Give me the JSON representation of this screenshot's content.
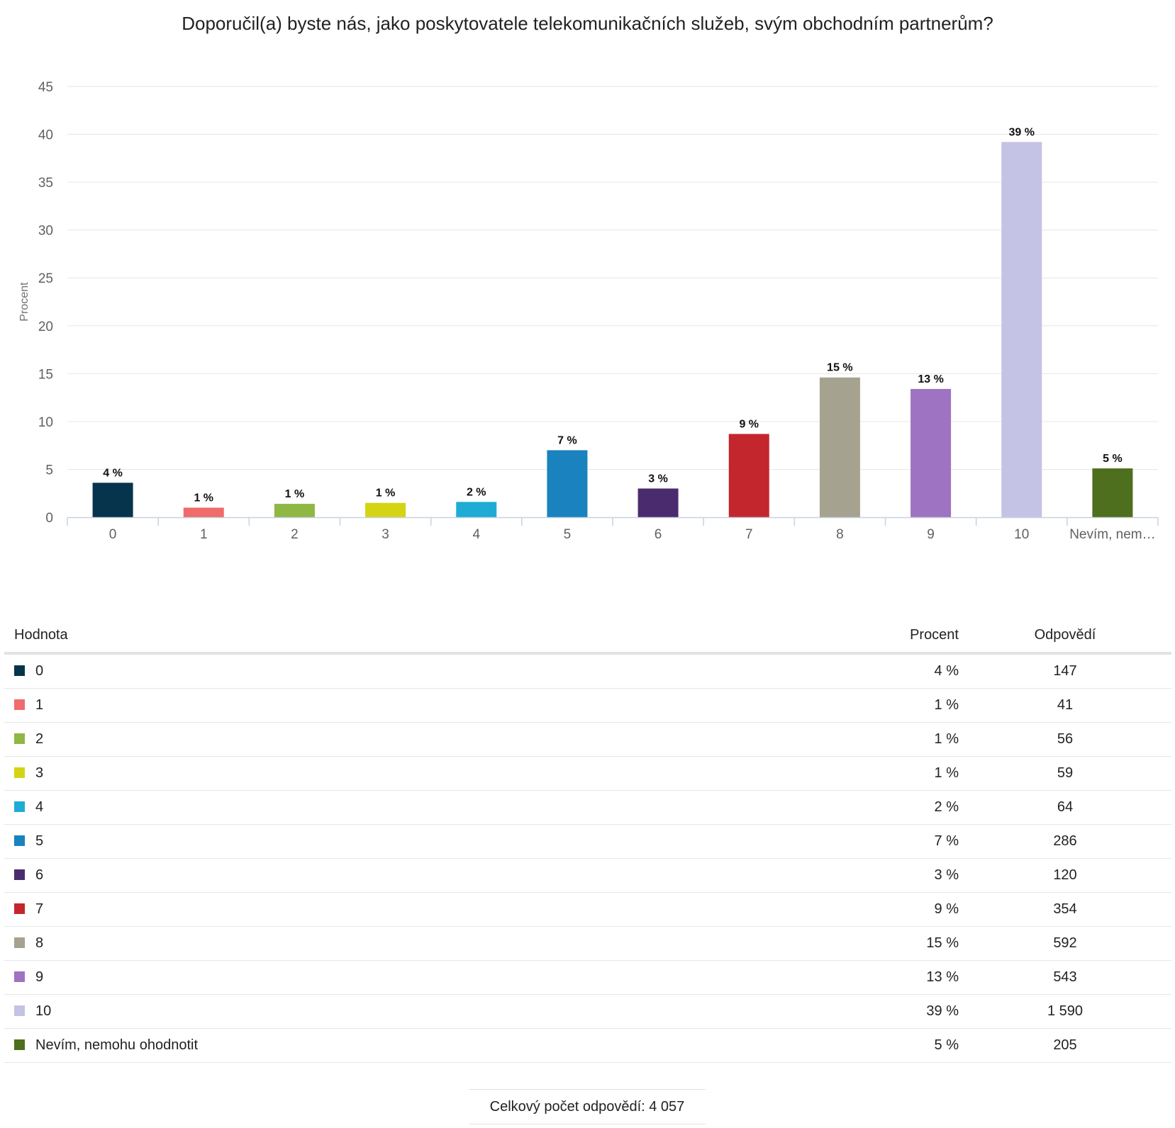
{
  "chart_data": {
    "type": "bar",
    "title": "Doporučil(a) byste nás, jako poskytovatele telekomunikačních služeb, svým obchodním partnerům?",
    "ylabel": "Procent",
    "xlabel": "",
    "ylim": [
      0,
      45
    ],
    "yticks": [
      0,
      5,
      10,
      15,
      20,
      25,
      30,
      35,
      40,
      45
    ],
    "grid": true,
    "categories": [
      "0",
      "1",
      "2",
      "3",
      "4",
      "5",
      "6",
      "7",
      "8",
      "9",
      "10",
      "Nevím, nem…"
    ],
    "values": [
      3.6,
      1.0,
      1.4,
      1.5,
      1.6,
      7.0,
      3.0,
      8.7,
      14.6,
      13.4,
      39.2,
      5.1
    ],
    "data_labels": [
      "4 %",
      "1 %",
      "1 %",
      "1 %",
      "2 %",
      "7 %",
      "3 %",
      "9 %",
      "15 %",
      "13 %",
      "39 %",
      "5 %"
    ],
    "colors": [
      "#06344c",
      "#f06b6b",
      "#8fb744",
      "#d4d414",
      "#1eacd4",
      "#1a82be",
      "#4a2c6e",
      "#c4262d",
      "#a5a38f",
      "#9e73c2",
      "#c4c3e5",
      "#4e6f1d"
    ]
  },
  "table": {
    "headers": {
      "value": "Hodnota",
      "percent": "Procent",
      "count": "Odpovědí"
    },
    "rows": [
      {
        "label": "0",
        "percent": "4 %",
        "count": "147",
        "color": "#06344c"
      },
      {
        "label": "1",
        "percent": "1 %",
        "count": "41",
        "color": "#f06b6b"
      },
      {
        "label": "2",
        "percent": "1 %",
        "count": "56",
        "color": "#8fb744"
      },
      {
        "label": "3",
        "percent": "1 %",
        "count": "59",
        "color": "#d4d414"
      },
      {
        "label": "4",
        "percent": "2 %",
        "count": "64",
        "color": "#1eacd4"
      },
      {
        "label": "5",
        "percent": "7 %",
        "count": "286",
        "color": "#1a82be"
      },
      {
        "label": "6",
        "percent": "3 %",
        "count": "120",
        "color": "#4a2c6e"
      },
      {
        "label": "7",
        "percent": "9 %",
        "count": "354",
        "color": "#c4262d"
      },
      {
        "label": "8",
        "percent": "15 %",
        "count": "592",
        "color": "#a5a38f"
      },
      {
        "label": "9",
        "percent": "13 %",
        "count": "543",
        "color": "#9e73c2"
      },
      {
        "label": "10",
        "percent": "39 %",
        "count": "1 590",
        "color": "#c4c3e5"
      },
      {
        "label": "Nevím, nemohu ohodnotit",
        "percent": "5 %",
        "count": "205",
        "color": "#4e6f1d"
      }
    ]
  },
  "total": "Celkový počet odpovědí: 4 057"
}
